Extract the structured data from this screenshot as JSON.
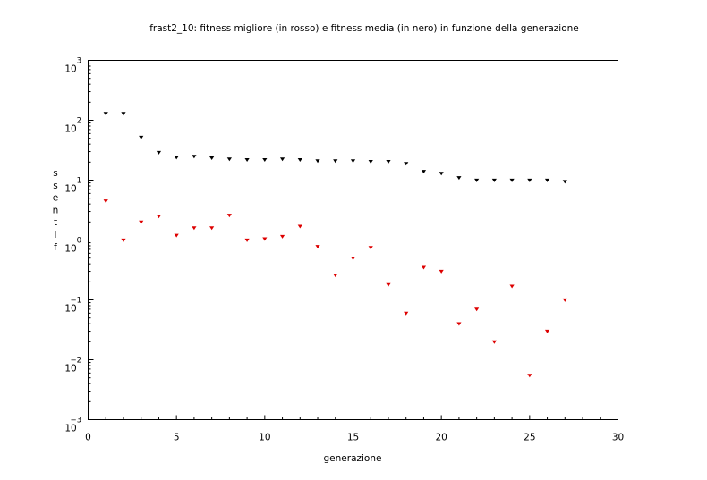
{
  "chart_data": {
    "type": "scatter",
    "title": "frast2_10: fitness migliore (in rosso) e fitness media (in nero) in funzione della generazione",
    "xlabel": "generazione",
    "ylabel": "fitness",
    "xlim": [
      0,
      30
    ],
    "ylim": [
      0.001,
      1000
    ],
    "yscale": "log",
    "x_ticks": [
      0,
      5,
      10,
      15,
      20,
      25,
      30
    ],
    "y_tick_exponents": [
      -3,
      -2,
      -1,
      0,
      1,
      2,
      3
    ],
    "y_tick_base": "10",
    "grid": false,
    "series": [
      {
        "color": "#000000",
        "x": [
          1,
          2,
          3,
          4,
          5,
          6,
          7,
          8,
          9,
          10,
          11,
          12,
          13,
          14,
          15,
          16,
          17,
          18,
          19,
          20,
          21,
          22,
          23,
          24,
          25,
          26,
          27
        ],
        "values": [
          130,
          130,
          52,
          29,
          24,
          25,
          23.5,
          22.5,
          22,
          22,
          22.5,
          22,
          21,
          21,
          21,
          20.5,
          20.5,
          19,
          14,
          13,
          11,
          10,
          10,
          10,
          10,
          10,
          9.5
        ]
      },
      {
        "color": "#dd0000",
        "x": [
          1,
          2,
          3,
          4,
          5,
          6,
          7,
          8,
          9,
          10,
          11,
          12,
          13,
          14,
          15,
          16,
          17,
          18,
          19,
          20,
          21,
          22,
          23,
          24,
          25,
          26,
          27
        ],
        "values": [
          4.5,
          1.0,
          2.0,
          2.5,
          1.2,
          1.6,
          1.6,
          2.6,
          1.0,
          1.05,
          1.15,
          1.7,
          0.78,
          0.26,
          0.5,
          0.75,
          0.18,
          0.06,
          0.35,
          0.3,
          0.04,
          0.07,
          0.02,
          0.17,
          0.0055,
          0.03,
          0.1
        ]
      }
    ]
  }
}
